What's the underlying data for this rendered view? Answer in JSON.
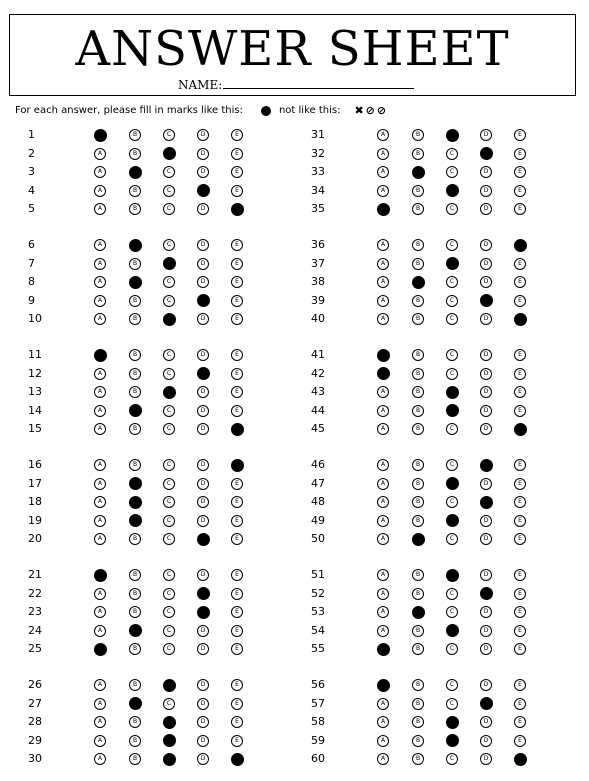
{
  "header": {
    "title": "ANSWER SHEET",
    "name_label": "NAME:"
  },
  "instructions": {
    "text_before": "For each answer, please fill in marks like this:",
    "text_after": "not like this:",
    "bad_marks": "✖⊘⊘"
  },
  "options": [
    "A",
    "B",
    "C",
    "D",
    "E"
  ],
  "answers": [
    {
      "number": "1",
      "answer": "A"
    },
    {
      "number": "2",
      "answer": "C"
    },
    {
      "number": "3",
      "answer": "B"
    },
    {
      "number": "4",
      "answer": "D"
    },
    {
      "number": "5",
      "answer": "E"
    },
    {
      "number": "6",
      "answer": "B"
    },
    {
      "number": "7",
      "answer": "C"
    },
    {
      "number": "8",
      "answer": "B"
    },
    {
      "number": "9",
      "answer": "D"
    },
    {
      "number": "10",
      "answer": "C"
    },
    {
      "number": "11",
      "answer": "A"
    },
    {
      "number": "12",
      "answer": "D"
    },
    {
      "number": "13",
      "answer": "C"
    },
    {
      "number": "14",
      "answer": "B"
    },
    {
      "number": "15",
      "answer": "E"
    },
    {
      "number": "16",
      "answer": "E"
    },
    {
      "number": "17",
      "answer": "B"
    },
    {
      "number": "18",
      "answer": "B"
    },
    {
      "number": "19",
      "answer": "B"
    },
    {
      "number": "20",
      "answer": "D"
    },
    {
      "number": "21",
      "answer": "A"
    },
    {
      "number": "22",
      "answer": "D"
    },
    {
      "number": "23",
      "answer": "D"
    },
    {
      "number": "24",
      "answer": "B"
    },
    {
      "number": "25",
      "answer": "A"
    },
    {
      "number": "26",
      "answer": "C"
    },
    {
      "number": "27",
      "answer": "B"
    },
    {
      "number": "28",
      "answer": "C"
    },
    {
      "number": "29",
      "answer": "C"
    },
    {
      "number": "30",
      "answer": "C,E"
    },
    {
      "number": "31",
      "answer": "C"
    },
    {
      "number": "32",
      "answer": "D"
    },
    {
      "number": "33",
      "answer": "B"
    },
    {
      "number": "34",
      "answer": "C"
    },
    {
      "number": "35",
      "answer": "A"
    },
    {
      "number": "36",
      "answer": "E"
    },
    {
      "number": "37",
      "answer": "C"
    },
    {
      "number": "38",
      "answer": "B"
    },
    {
      "number": "39",
      "answer": "D"
    },
    {
      "number": "40",
      "answer": "E"
    },
    {
      "number": "41",
      "answer": "A"
    },
    {
      "number": "42",
      "answer": "A"
    },
    {
      "number": "43",
      "answer": "C"
    },
    {
      "number": "44",
      "answer": "C"
    },
    {
      "number": "45",
      "answer": "E"
    },
    {
      "number": "46",
      "answer": "D"
    },
    {
      "number": "47",
      "answer": "C"
    },
    {
      "number": "48",
      "answer": "D"
    },
    {
      "number": "49",
      "answer": "C"
    },
    {
      "number": "50",
      "answer": "B"
    },
    {
      "number": "51",
      "answer": "C"
    },
    {
      "number": "52",
      "answer": "D"
    },
    {
      "number": "53",
      "answer": "B"
    },
    {
      "number": "54",
      "answer": "C"
    },
    {
      "number": "55",
      "answer": "A"
    },
    {
      "number": "56",
      "answer": "A"
    },
    {
      "number": "57",
      "answer": "D"
    },
    {
      "number": "58",
      "answer": "C"
    },
    {
      "number": "59",
      "answer": "C"
    },
    {
      "number": "60",
      "answer": "E"
    }
  ]
}
